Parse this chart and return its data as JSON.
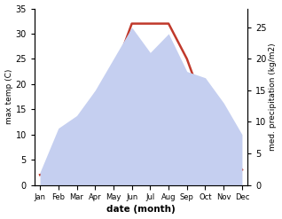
{
  "months": [
    "Jan",
    "Feb",
    "Mar",
    "Apr",
    "May",
    "Jun",
    "Jul",
    "Aug",
    "Sep",
    "Oct",
    "Nov",
    "Dec"
  ],
  "temperature": [
    2,
    3,
    8,
    18,
    22,
    32,
    32,
    32,
    25,
    15,
    8,
    3
  ],
  "precipitation": [
    2,
    9,
    11,
    15,
    20,
    25,
    21,
    24,
    18,
    17,
    13,
    8
  ],
  "temp_color": "#c0392b",
  "precip_fill_color": "#c5cff0",
  "title": "",
  "xlabel": "date (month)",
  "ylabel_left": "max temp (C)",
  "ylabel_right": "med. precipitation (kg/m2)",
  "ylim_left": [
    0,
    35
  ],
  "ylim_right": [
    0,
    28
  ],
  "temp_linewidth": 1.8,
  "bg_color": "#ffffff"
}
